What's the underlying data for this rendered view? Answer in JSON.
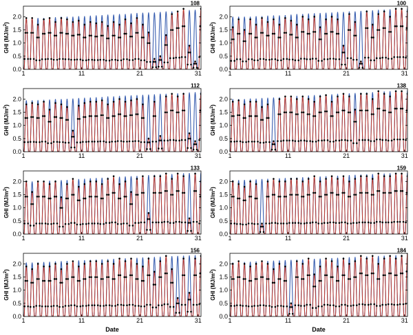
{
  "chart_data": [
    {
      "type": "line",
      "panel_id": "108",
      "ylabel": "GHI (MJ/m",
      "ylabel_sup": "2",
      "ylabel_close": ")",
      "xlabel": "",
      "x_ticks": [
        "1",
        "11",
        "21",
        "31"
      ],
      "y_ticks": [
        "0.0",
        "0.5",
        "1.0",
        "1.5",
        "2.0"
      ],
      "ylim": [
        0,
        2.4
      ],
      "xlim": [
        1,
        31.5
      ],
      "series": [
        {
          "name": "",
          "color": "#3a5fb0"
        },
        {
          "name": "",
          "color": "#c0392b"
        },
        {
          "name": "",
          "color": "#000000"
        }
      ],
      "daily_peak_clear": [
        1.95,
        1.95,
        1.95,
        1.95,
        1.95,
        1.98,
        2.0,
        2.0,
        2.0,
        2.02,
        2.02,
        2.04,
        2.05,
        2.06,
        2.08,
        2.08,
        2.1,
        2.1,
        2.12,
        2.14,
        2.15,
        2.16,
        2.16,
        2.18,
        2.2,
        2.2,
        2.22,
        2.24,
        2.25,
        2.26,
        2.28
      ],
      "daily_peak_obs": [
        1.95,
        1.95,
        1.7,
        1.9,
        1.95,
        1.8,
        1.95,
        1.9,
        1.8,
        1.85,
        1.7,
        1.8,
        1.75,
        1.8,
        1.65,
        1.8,
        1.7,
        1.9,
        1.75,
        1.95,
        1.7,
        1.4,
        0.4,
        0.5,
        1.3,
        2.1,
        2.2,
        2.3,
        0.9,
        0.3,
        2.3
      ]
    },
    {
      "type": "line",
      "panel_id": "100",
      "ylabel": "GHI (MJ/m",
      "ylabel_sup": "2",
      "ylabel_close": ")",
      "xlabel": "",
      "x_ticks": [
        "1",
        "11",
        "21",
        "31"
      ],
      "y_ticks": [
        "0.0",
        "0.5",
        "1.0",
        "1.5",
        "2.0"
      ],
      "ylim": [
        0,
        2.4
      ],
      "xlim": [
        1,
        31.5
      ],
      "series": [
        {
          "name": "",
          "color": "#3a5fb0"
        },
        {
          "name": "",
          "color": "#c0392b"
        },
        {
          "name": "",
          "color": "#000000"
        }
      ],
      "daily_peak_clear": [
        2.0,
        2.0,
        2.0,
        2.0,
        2.02,
        2.02,
        2.04,
        2.05,
        2.05,
        2.06,
        2.08,
        2.1,
        2.1,
        2.12,
        2.13,
        2.14,
        2.15,
        2.16,
        2.18,
        2.18,
        2.2,
        2.2,
        2.22,
        2.24,
        2.24,
        2.26,
        2.27,
        2.28,
        2.3,
        2.3,
        2.32
      ],
      "daily_peak_obs": [
        1.6,
        1.9,
        1.5,
        1.9,
        1.7,
        1.95,
        1.8,
        1.9,
        1.7,
        1.95,
        1.85,
        1.7,
        2.0,
        1.9,
        2.0,
        1.6,
        1.9,
        2.0,
        1.9,
        0.9,
        2.1,
        1.8,
        0.3,
        2.2,
        1.7,
        2.1,
        2.2,
        2.0,
        2.3,
        2.3,
        2.2
      ]
    },
    {
      "type": "line",
      "panel_id": "112",
      "ylabel": "GHI (MJ/m",
      "ylabel_sup": "2",
      "ylabel_close": ")",
      "xlabel": "",
      "x_ticks": [
        "1",
        "11",
        "21",
        "31"
      ],
      "y_ticks": [
        "0.0",
        "0.5",
        "1.0",
        "1.5",
        "2.0"
      ],
      "ylim": [
        0,
        2.4
      ],
      "xlim": [
        1,
        31.5
      ],
      "series": [
        {
          "name": "",
          "color": "#3a5fb0"
        },
        {
          "name": "",
          "color": "#c0392b"
        },
        {
          "name": "",
          "color": "#000000"
        }
      ],
      "daily_peak_clear": [
        1.95,
        1.95,
        1.96,
        1.97,
        1.98,
        2.0,
        2.0,
        2.01,
        2.02,
        2.04,
        2.05,
        2.06,
        2.07,
        2.08,
        2.1,
        2.1,
        2.12,
        2.13,
        2.14,
        2.15,
        2.16,
        2.17,
        2.18,
        2.2,
        2.2,
        2.21,
        2.22,
        2.24,
        2.25,
        2.26,
        2.28
      ],
      "daily_peak_obs": [
        1.8,
        1.85,
        1.8,
        1.9,
        1.6,
        1.85,
        1.8,
        1.7,
        0.8,
        1.75,
        1.85,
        1.9,
        1.9,
        1.95,
        1.8,
        1.9,
        2.0,
        1.9,
        1.95,
        2.0,
        1.8,
        0.5,
        1.9,
        0.6,
        2.1,
        2.2,
        2.1,
        2.2,
        0.7,
        0.4,
        2.2
      ]
    },
    {
      "type": "line",
      "panel_id": "138",
      "ylabel": "GHI (MJ/m",
      "ylabel_sup": "2",
      "ylabel_close": ")",
      "xlabel": "",
      "x_ticks": [
        "1",
        "11",
        "21",
        "31"
      ],
      "y_ticks": [
        "0.0",
        "0.5",
        "1.0",
        "1.5",
        "2.0"
      ],
      "ylim": [
        0,
        2.4
      ],
      "xlim": [
        1,
        31.5
      ],
      "series": [
        {
          "name": "",
          "color": "#3a5fb0"
        },
        {
          "name": "",
          "color": "#c0392b"
        },
        {
          "name": "",
          "color": "#000000"
        }
      ],
      "daily_peak_clear": [
        2.0,
        2.0,
        2.0,
        2.02,
        2.02,
        2.04,
        2.05,
        2.06,
        2.07,
        2.08,
        2.1,
        2.12,
        2.13,
        2.14,
        2.15,
        2.16,
        2.17,
        2.18,
        2.2,
        2.2,
        2.22,
        2.23,
        2.24,
        2.25,
        2.26,
        2.28,
        2.29,
        2.3,
        2.31,
        2.32,
        2.34
      ],
      "daily_peak_obs": [
        1.9,
        1.95,
        1.8,
        1.9,
        1.9,
        1.7,
        1.8,
        0.4,
        2.0,
        2.1,
        2.1,
        2.0,
        2.1,
        2.0,
        1.9,
        2.1,
        2.15,
        1.9,
        2.1,
        2.2,
        2.1,
        1.6,
        2.2,
        2.2,
        2.0,
        2.3,
        2.2,
        2.1,
        2.3,
        2.3,
        2.2
      ]
    },
    {
      "type": "line",
      "panel_id": "133",
      "ylabel": "GHI (MJ/m",
      "ylabel_sup": "2",
      "ylabel_close": ")",
      "xlabel": "",
      "x_ticks": [
        "1",
        "11",
        "21",
        "31"
      ],
      "y_ticks": [
        "0.0",
        "0.5",
        "1.0",
        "1.5",
        "2.0"
      ],
      "ylim": [
        0,
        2.4
      ],
      "xlim": [
        1,
        31.5
      ],
      "series": [
        {
          "name": "",
          "color": "#3a5fb0"
        },
        {
          "name": "",
          "color": "#c0392b"
        },
        {
          "name": "",
          "color": "#000000"
        }
      ],
      "daily_peak_clear": [
        2.0,
        2.0,
        2.0,
        2.02,
        2.03,
        2.04,
        2.05,
        2.06,
        2.08,
        2.09,
        2.1,
        2.12,
        2.13,
        2.14,
        2.15,
        2.16,
        2.18,
        2.19,
        2.2,
        2.21,
        2.22,
        2.24,
        2.25,
        2.26,
        2.27,
        2.28,
        2.3,
        2.31,
        2.32,
        2.33,
        2.35
      ],
      "daily_peak_obs": [
        2.0,
        1.6,
        2.0,
        2.0,
        1.9,
        2.0,
        1.4,
        1.9,
        2.1,
        1.8,
        1.9,
        2.0,
        2.0,
        1.9,
        2.1,
        2.2,
        1.9,
        2.0,
        1.6,
        2.1,
        2.2,
        0.8,
        2.2,
        2.2,
        2.3,
        2.1,
        2.3,
        2.2,
        0.6,
        2.3,
        2.0
      ]
    },
    {
      "type": "line",
      "panel_id": "159",
      "ylabel": "GHI (MJ/m",
      "ylabel_sup": "2",
      "ylabel_close": ")",
      "xlabel": "",
      "x_ticks": [
        "1",
        "11",
        "21",
        "31"
      ],
      "y_ticks": [
        "0.0",
        "0.5",
        "1.0",
        "1.5",
        "2.0"
      ],
      "ylim": [
        0,
        2.4
      ],
      "xlim": [
        1,
        31.5
      ],
      "series": [
        {
          "name": "",
          "color": "#3a5fb0"
        },
        {
          "name": "",
          "color": "#c0392b"
        },
        {
          "name": "",
          "color": "#000000"
        }
      ],
      "daily_peak_clear": [
        2.05,
        2.05,
        2.06,
        2.07,
        2.08,
        2.09,
        2.1,
        2.11,
        2.12,
        2.13,
        2.14,
        2.15,
        2.16,
        2.17,
        2.18,
        2.19,
        2.2,
        2.21,
        2.22,
        2.23,
        2.24,
        2.25,
        2.26,
        2.27,
        2.28,
        2.29,
        2.3,
        2.31,
        2.32,
        2.33,
        2.34
      ],
      "daily_peak_obs": [
        2.0,
        1.9,
        1.8,
        2.0,
        1.9,
        0.4,
        2.0,
        2.1,
        2.0,
        2.0,
        2.1,
        2.1,
        2.0,
        2.1,
        2.2,
        2.0,
        2.1,
        2.2,
        2.1,
        2.2,
        2.0,
        2.1,
        2.2,
        2.2,
        2.1,
        2.3,
        2.2,
        2.2,
        2.3,
        2.3,
        2.2
      ]
    },
    {
      "type": "line",
      "panel_id": "156",
      "ylabel": "GHI (MJ/m",
      "ylabel_sup": "2",
      "ylabel_close": ")",
      "xlabel": "Date",
      "x_ticks": [
        "1",
        "11",
        "21",
        "31"
      ],
      "y_ticks": [
        "0.0",
        "0.5",
        "1.0",
        "1.5",
        "2.0"
      ],
      "ylim": [
        0,
        2.4
      ],
      "xlim": [
        1,
        31.5
      ],
      "series": [
        {
          "name": "",
          "color": "#3a5fb0"
        },
        {
          "name": "",
          "color": "#c0392b"
        },
        {
          "name": "",
          "color": "#000000"
        }
      ],
      "daily_peak_clear": [
        2.05,
        2.05,
        2.06,
        2.07,
        2.08,
        2.09,
        2.1,
        2.11,
        2.12,
        2.13,
        2.14,
        2.15,
        2.16,
        2.17,
        2.18,
        2.19,
        2.2,
        2.21,
        2.22,
        2.23,
        2.24,
        2.25,
        2.26,
        2.27,
        2.28,
        2.29,
        2.3,
        2.31,
        2.32,
        2.33,
        2.34
      ],
      "daily_peak_obs": [
        1.9,
        1.8,
        2.0,
        1.9,
        1.9,
        2.0,
        1.8,
        2.0,
        2.1,
        1.9,
        2.0,
        2.1,
        2.1,
        2.0,
        2.1,
        2.0,
        2.2,
        2.1,
        2.2,
        2.0,
        1.9,
        2.2,
        1.7,
        2.1,
        2.3,
        1.8,
        0.7,
        2.2,
        0.9,
        2.2,
        2.3
      ]
    },
    {
      "type": "line",
      "panel_id": "184",
      "ylabel": "GHI (MJ/m",
      "ylabel_sup": "2",
      "ylabel_close": ")",
      "xlabel": "Date",
      "x_ticks": [
        "1",
        "11",
        "21",
        "31"
      ],
      "y_ticks": [
        "0.0",
        "0.5",
        "1.0",
        "1.5",
        "2.0"
      ],
      "ylim": [
        0,
        2.4
      ],
      "xlim": [
        1,
        31.5
      ],
      "series": [
        {
          "name": "",
          "color": "#3a5fb0"
        },
        {
          "name": "",
          "color": "#c0392b"
        },
        {
          "name": "",
          "color": "#000000"
        }
      ],
      "daily_peak_clear": [
        2.05,
        2.06,
        2.07,
        2.08,
        2.09,
        2.1,
        2.11,
        2.12,
        2.13,
        2.14,
        2.15,
        2.16,
        2.17,
        2.18,
        2.19,
        2.2,
        2.21,
        2.22,
        2.23,
        2.24,
        2.25,
        2.26,
        2.27,
        2.28,
        2.29,
        2.3,
        2.31,
        2.32,
        2.33,
        2.34,
        2.35
      ],
      "daily_peak_obs": [
        2.0,
        2.1,
        2.0,
        1.9,
        2.0,
        2.1,
        2.0,
        1.8,
        2.0,
        1.9,
        0.5,
        2.1,
        2.0,
        2.2,
        1.6,
        1.9,
        2.2,
        2.1,
        1.9,
        2.2,
        2.0,
        2.1,
        2.3,
        2.2,
        2.3,
        2.0,
        2.2,
        2.3,
        2.2,
        2.3,
        2.4
      ]
    }
  ]
}
